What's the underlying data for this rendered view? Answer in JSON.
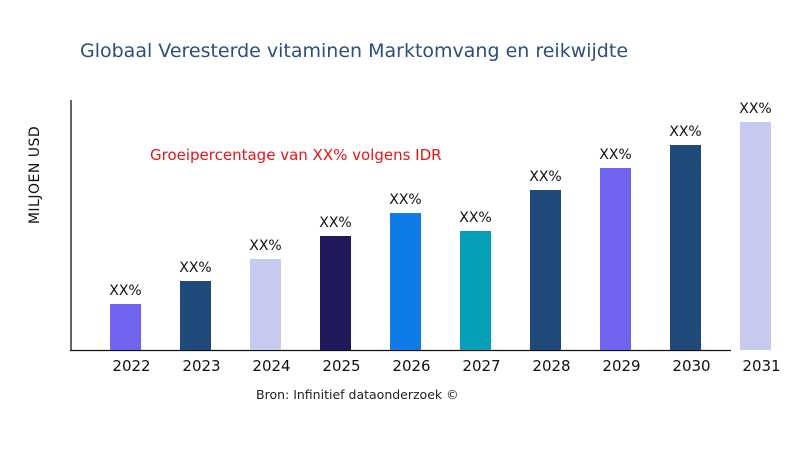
{
  "chart_data": {
    "type": "bar",
    "title": "Globaal Veresterde vitaminen Marktomvang en reikwijdte",
    "ylabel": "MILJOEN USD",
    "xlabel": "",
    "annotation": "Groeipercentage van XX% volgens IDR",
    "source": "Bron: Infinitief dataonderzoek ©",
    "categories": [
      "2022",
      "2023",
      "2024",
      "2025",
      "2026",
      "2027",
      "2028",
      "2029",
      "2030",
      "2031"
    ],
    "values": [
      46,
      69,
      91,
      114,
      137,
      119,
      160,
      182,
      205,
      228
    ],
    "data_labels": [
      "XX%",
      "XX%",
      "XX%",
      "XX%",
      "XX%",
      "XX%",
      "XX%",
      "XX%",
      "XX%",
      "XX%"
    ],
    "colors": [
      "#7165f0",
      "#1f4a7a",
      "#c8c9ef",
      "#1f1a5a",
      "#0f7be6",
      "#05a0b8",
      "#1f4a7a",
      "#7165f0",
      "#1f4a7a",
      "#c8c9ef"
    ],
    "ylim": [
      0,
      250
    ],
    "grid": false,
    "legend": "none"
  }
}
